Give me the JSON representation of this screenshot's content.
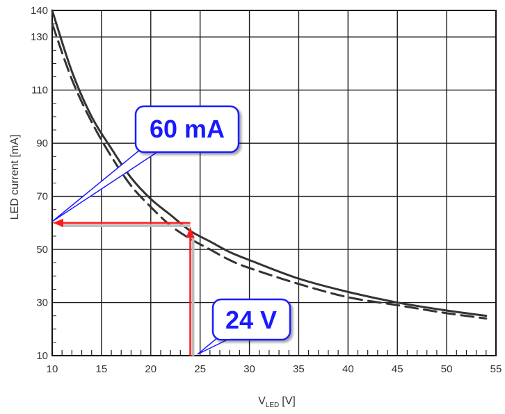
{
  "chart_data": {
    "type": "line",
    "xlabel_main": "V",
    "xlabel_sub": "LED",
    "xlabel_unit": "[V]",
    "ylabel": "LED current [mA]",
    "xlim": [
      10,
      55
    ],
    "ylim": [
      10,
      140
    ],
    "x_ticks": [
      "10",
      "15",
      "20",
      "25",
      "30",
      "35",
      "40",
      "45",
      "50",
      "55"
    ],
    "y_ticks": [
      "10",
      "30",
      "50",
      "70",
      "90",
      "110",
      "130",
      "140"
    ],
    "x_tick_values": [
      10,
      15,
      20,
      25,
      30,
      35,
      40,
      45,
      50,
      55
    ],
    "y_tick_values": [
      10,
      30,
      50,
      70,
      90,
      110,
      130,
      140
    ],
    "x_minor_step": 1,
    "grid": true,
    "series": [
      {
        "style": "solid",
        "color": "#333333",
        "x": [
          10,
          12,
          14,
          16,
          18,
          20,
          22,
          24,
          26,
          28,
          30,
          35,
          40,
          45,
          50,
          54
        ],
        "y": [
          140,
          117,
          100,
          88,
          77,
          69,
          63,
          57,
          53,
          49,
          46,
          39,
          34,
          30,
          27,
          25
        ]
      },
      {
        "style": "dashed",
        "color": "#333333",
        "x": [
          10,
          12,
          14,
          16,
          18,
          20,
          22,
          24,
          26,
          28,
          30,
          35,
          40,
          45,
          50,
          54
        ],
        "y": [
          135,
          114,
          98,
          85,
          74,
          66,
          59,
          54,
          50,
          46,
          43,
          37,
          32,
          29,
          26,
          24
        ]
      }
    ],
    "annotations": [
      {
        "text": "60 mA",
        "color": "#1a1aff",
        "x": 10,
        "y": 60
      },
      {
        "text": "24 V",
        "color": "#1a1aff",
        "x": 24,
        "y": 10
      }
    ],
    "arrows": {
      "color": "#ff1a1a",
      "vertical": {
        "x": 24,
        "from_y": 10,
        "to_y": 58
      },
      "horizontal": {
        "y": 60,
        "from_x": 24,
        "to_x": 10
      }
    }
  }
}
